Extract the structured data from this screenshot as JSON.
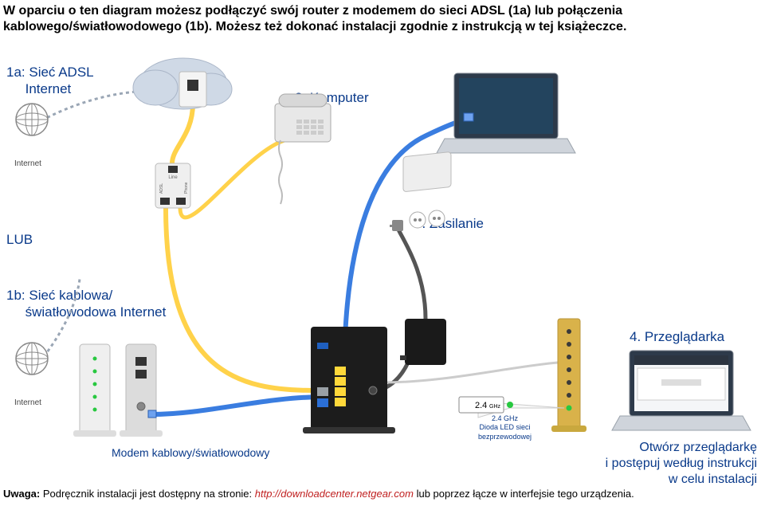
{
  "colors": {
    "text": "#000000",
    "accent_blue": "#0a3a8a",
    "link": "#c02020",
    "cable_yellow": "#ffd24a",
    "cable_blue": "#3a7de0",
    "cable_dark": "#555555",
    "cable_gray": "#bfbfbf",
    "cloud": "#cfd9e6",
    "router_body": "#1c1c1c",
    "router_gold": "#d9b24a",
    "modem_body": "#efefef",
    "wall_socket": "#eeeeee",
    "phone_body": "#e8e8e8",
    "laptop_body": "#cfd4db",
    "laptop_screen": "#2d3a4a",
    "splitter_body": "#efefef",
    "psu_body": "#1a1a1a",
    "ghz_box": "#ffffff",
    "ghz_text": "#000000",
    "port_lan": "#ffd83a",
    "port_wan": "#2b6fd6",
    "port_dsl": "#9aa0a6",
    "port_usb": "#1f5fbf",
    "note_color": "#000000"
  },
  "fonts": {
    "heading_size": 16,
    "heading_weight": "bold",
    "label_size": 17,
    "label_weight": "normal",
    "label_color": "#0a3a8a",
    "small_size": 10,
    "note_size": 13
  },
  "heading": {
    "line1": "W oparciu o ten diagram możesz podłączyć swój router z modemem do sieci ADSL (1a) lub połączenia",
    "line2": "kablowego/światłowodowego (1b). Możesz też dokonać instalacji zgodnie z instrukcją w tej książeczce."
  },
  "labels": {
    "adsl": "1a: Sieć ADSL\n     Internet",
    "komputer": "2. Komputer",
    "internet1": "Internet",
    "lub": "LUB",
    "zasilanie": "3. Zasilanie",
    "kablowa": "1b: Sieć kablowa/\n     światłowodowa Internet",
    "przegladarka": "4. Przeglądarka",
    "internet2": "Internet",
    "ghz_box": "2.4 GHz",
    "ghz_caption": "2.4 GHz\nDioda LED sieci\nbezprzewodowej",
    "modem": "Modem kablowy/światłowodowy",
    "open_line1": "Otwórz przeglądarkę",
    "open_line2": "i postępuj według instrukcji",
    "open_line3": "w celu instalacji",
    "splitter_line": "Line",
    "splitter_adsl": "ADSL",
    "splitter_phone": "Phone"
  },
  "footer": {
    "prefix": "Uwaga:",
    "text1": " Podręcznik instalacji jest dostępny na stronie: ",
    "link": "http://downloadcenter.netgear.com",
    "text2": " lub poprzez łącze w interfejsie tego urządzenia."
  },
  "router": {
    "lan_ports": 4,
    "has_usb": true,
    "has_dsl": true,
    "has_wan": true
  }
}
